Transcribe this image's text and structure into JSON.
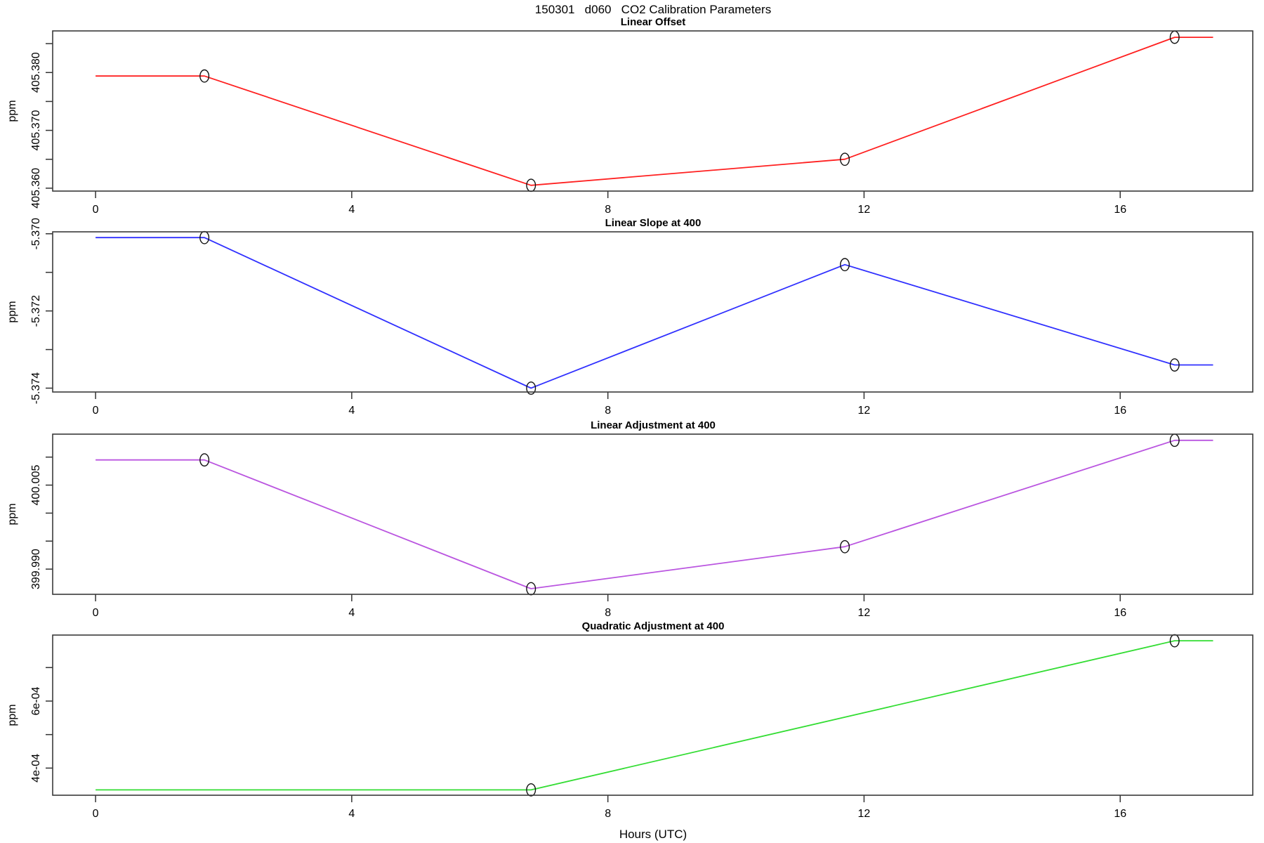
{
  "figure": {
    "title": "150301   d060   CO2 Calibration Parameters",
    "xlabel": "Hours (UTC)"
  },
  "chart_data": {
    "type": "line",
    "title": "150301   d060   CO2 Calibration Parameters",
    "xlabel": "Hours (UTC)",
    "xlim": [
      -0.67,
      18.07
    ],
    "xticks": [
      {
        "v": 0,
        "label": "0"
      },
      {
        "v": 4,
        "label": "4"
      },
      {
        "v": 8,
        "label": "8"
      },
      {
        "v": 12,
        "label": "12"
      },
      {
        "v": 16,
        "label": "16"
      }
    ],
    "line_domain": [
      0,
      17.45
    ],
    "marker": "open-circle",
    "marker_color": "#111111",
    "panels": [
      {
        "id": "linear-offset",
        "title": "Linear Offset",
        "ylabel": "ppm",
        "color": "#FF2020",
        "x": [
          1.7,
          6.8,
          11.7,
          16.85
        ],
        "y": [
          405.3794,
          405.3605,
          405.365,
          405.3861
        ],
        "ylim": [
          405.3595,
          405.3872
        ],
        "yticks": [
          {
            "v": 405.36,
            "label": "405.360"
          },
          {
            "v": 405.365,
            "label": ""
          },
          {
            "v": 405.37,
            "label": "405.370"
          },
          {
            "v": 405.375,
            "label": ""
          },
          {
            "v": 405.38,
            "label": "405.380"
          },
          {
            "v": 405.385,
            "label": ""
          }
        ]
      },
      {
        "id": "linear-slope-at-400",
        "title": "Linear Slope at 400",
        "ylabel": "ppm",
        "color": "#3030FF",
        "x": [
          1.7,
          6.8,
          11.7,
          16.85
        ],
        "y": [
          -5.3701,
          -5.374,
          -5.3708,
          -5.3734
        ],
        "ylim": [
          -5.3741,
          -5.36995
        ],
        "yticks": [
          {
            "v": -5.374,
            "label": "-5.374"
          },
          {
            "v": -5.373,
            "label": ""
          },
          {
            "v": -5.372,
            "label": "-5.372"
          },
          {
            "v": -5.371,
            "label": ""
          },
          {
            "v": -5.37,
            "label": "-5.370"
          }
        ]
      },
      {
        "id": "linear-adjustment-at-400",
        "title": "Linear Adjustment at 400",
        "ylabel": "ppm",
        "color": "#BA55E0",
        "x": [
          1.7,
          6.8,
          11.7,
          16.85
        ],
        "y": [
          400.0095,
          399.9865,
          399.994,
          400.013
        ],
        "ylim": [
          399.9855,
          400.0141
        ],
        "yticks": [
          {
            "v": 399.99,
            "label": "399.990"
          },
          {
            "v": 399.995,
            "label": ""
          },
          {
            "v": 400.0,
            "label": ""
          },
          {
            "v": 400.005,
            "label": "400.005"
          },
          {
            "v": 400.01,
            "label": ""
          }
        ]
      },
      {
        "id": "quadratic-adjustment-at-400",
        "title": "Quadratic Adjustment at 400",
        "ylabel": "ppm",
        "color": "#33DD33",
        "x": [
          6.8,
          16.85
        ],
        "y": [
          0.000335,
          0.00078
        ],
        "ylim": [
          0.000319,
          0.000797
        ],
        "yticks": [
          {
            "v": 0.0004,
            "label": "4e-04"
          },
          {
            "v": 0.0005,
            "label": ""
          },
          {
            "v": 0.0006,
            "label": "6e-04"
          },
          {
            "v": 0.0007,
            "label": ""
          }
        ]
      }
    ]
  }
}
